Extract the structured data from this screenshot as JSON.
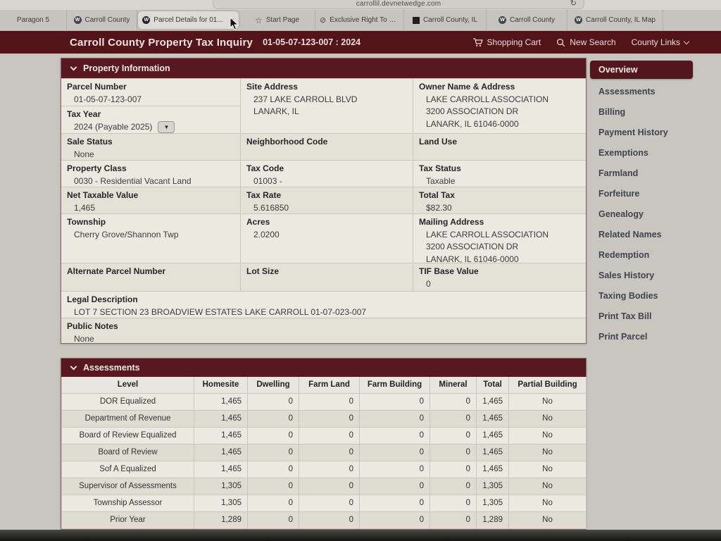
{
  "browser": {
    "url": "carrollil.devnetwedge.com",
    "tabs": [
      {
        "label": "Paragon 5",
        "icon": "none",
        "active": false
      },
      {
        "label": "Carroll County",
        "icon": "wedge",
        "active": false
      },
      {
        "label": "Parcel Details for 01...",
        "icon": "wedge-dark",
        "active": true
      },
      {
        "label": "Start Page",
        "icon": "star",
        "active": false
      },
      {
        "label": "Exclusive Right To S...",
        "icon": "compass",
        "active": false
      },
      {
        "label": "Carroll County, IL",
        "icon": "square",
        "active": false
      },
      {
        "label": "Carroll County",
        "icon": "wedge",
        "active": false
      },
      {
        "label": "Carroll County, IL Map",
        "icon": "wedge",
        "active": false
      }
    ]
  },
  "header": {
    "title": "Carroll County Property Tax Inquiry",
    "parcel_context": "01-05-07-123-007 : 2024",
    "shopping_cart_label": "Shopping Cart",
    "new_search_label": "New Search",
    "county_links_label": "County Links"
  },
  "colors": {
    "header_maroon": "#521419",
    "panel_maroon": "#571820",
    "page_background": "#c9c6bf",
    "panel_background": "#ebe9e0"
  },
  "property_information": {
    "title": "Property Information",
    "parcel_number": {
      "label": "Parcel Number",
      "value": "01-05-07-123-007"
    },
    "tax_year": {
      "label": "Tax Year",
      "value": "2024 (Payable 2025)"
    },
    "site_address": {
      "label": "Site Address",
      "lines": [
        "237 LAKE CARROLL BLVD",
        "LANARK, IL"
      ]
    },
    "owner": {
      "label": "Owner Name & Address",
      "lines": [
        "LAKE CARROLL ASSOCIATION",
        "3200 ASSOCIATION DR",
        "LANARK, IL 61046-0000"
      ]
    },
    "sale_status": {
      "label": "Sale Status",
      "value": "None"
    },
    "neighborhood_code": {
      "label": "Neighborhood Code",
      "value": ""
    },
    "land_use": {
      "label": "Land Use",
      "value": ""
    },
    "property_class": {
      "label": "Property Class",
      "value": "0030 - Residential Vacant Land"
    },
    "tax_code": {
      "label": "Tax Code",
      "value": "01003 -"
    },
    "tax_status": {
      "label": "Tax Status",
      "value": "Taxable"
    },
    "net_taxable_value": {
      "label": "Net Taxable Value",
      "value": "1,465"
    },
    "tax_rate": {
      "label": "Tax Rate",
      "value": "5.616850"
    },
    "total_tax": {
      "label": "Total Tax",
      "value": "$82.30"
    },
    "township": {
      "label": "Township",
      "value": "Cherry Grove/Shannon Twp"
    },
    "acres": {
      "label": "Acres",
      "value": "2.0200"
    },
    "mailing_address": {
      "label": "Mailing Address",
      "lines": [
        "LAKE CARROLL ASSOCIATION",
        "3200 ASSOCIATION DR",
        "LANARK, IL 61046-0000"
      ]
    },
    "alternate_parcel_number": {
      "label": "Alternate Parcel Number",
      "value": ""
    },
    "lot_size": {
      "label": "Lot Size",
      "value": ""
    },
    "tif_base_value": {
      "label": "TIF Base Value",
      "value": "0"
    },
    "legal_description": {
      "label": "Legal Description",
      "value": "LOT 7 SECTION 23 BROADVIEW ESTATES LAKE CARROLL 01-07-023-007"
    },
    "public_notes": {
      "label": "Public Notes",
      "value": "None"
    }
  },
  "assessments": {
    "title": "Assessments",
    "columns": [
      "Level",
      "Homesite",
      "Dwelling",
      "Farm Land",
      "Farm Building",
      "Mineral",
      "Total",
      "Partial Building"
    ],
    "rows": [
      [
        "DOR Equalized",
        "1,465",
        "0",
        "0",
        "0",
        "0",
        "1,465",
        "No"
      ],
      [
        "Department of Revenue",
        "1,465",
        "0",
        "0",
        "0",
        "0",
        "1,465",
        "No"
      ],
      [
        "Board of Review Equalized",
        "1,465",
        "0",
        "0",
        "0",
        "0",
        "1,465",
        "No"
      ],
      [
        "Board of Review",
        "1,465",
        "0",
        "0",
        "0",
        "0",
        "1,465",
        "No"
      ],
      [
        "Sof A Equalized",
        "1,465",
        "0",
        "0",
        "0",
        "0",
        "1,465",
        "No"
      ],
      [
        "Supervisor of Assessments",
        "1,305",
        "0",
        "0",
        "0",
        "0",
        "1,305",
        "No"
      ],
      [
        "Township Assessor",
        "1,305",
        "0",
        "0",
        "0",
        "0",
        "1,305",
        "No"
      ],
      [
        "Prior Year",
        "1,289",
        "0",
        "0",
        "0",
        "0",
        "1,289",
        "No"
      ]
    ]
  },
  "sidebar": {
    "items": [
      {
        "label": "Overview",
        "active": true
      },
      {
        "label": "Assessments",
        "active": false
      },
      {
        "label": "Billing",
        "active": false
      },
      {
        "label": "Payment History",
        "active": false
      },
      {
        "label": "Exemptions",
        "active": false
      },
      {
        "label": "Farmland",
        "active": false
      },
      {
        "label": "Forfeiture",
        "active": false
      },
      {
        "label": "Genealogy",
        "active": false
      },
      {
        "label": "Related Names",
        "active": false
      },
      {
        "label": "Redemption",
        "active": false
      },
      {
        "label": "Sales History",
        "active": false
      },
      {
        "label": "Taxing Bodies",
        "active": false
      },
      {
        "label": "Print Tax Bill",
        "active": false
      },
      {
        "label": "Print Parcel",
        "active": false
      }
    ]
  }
}
